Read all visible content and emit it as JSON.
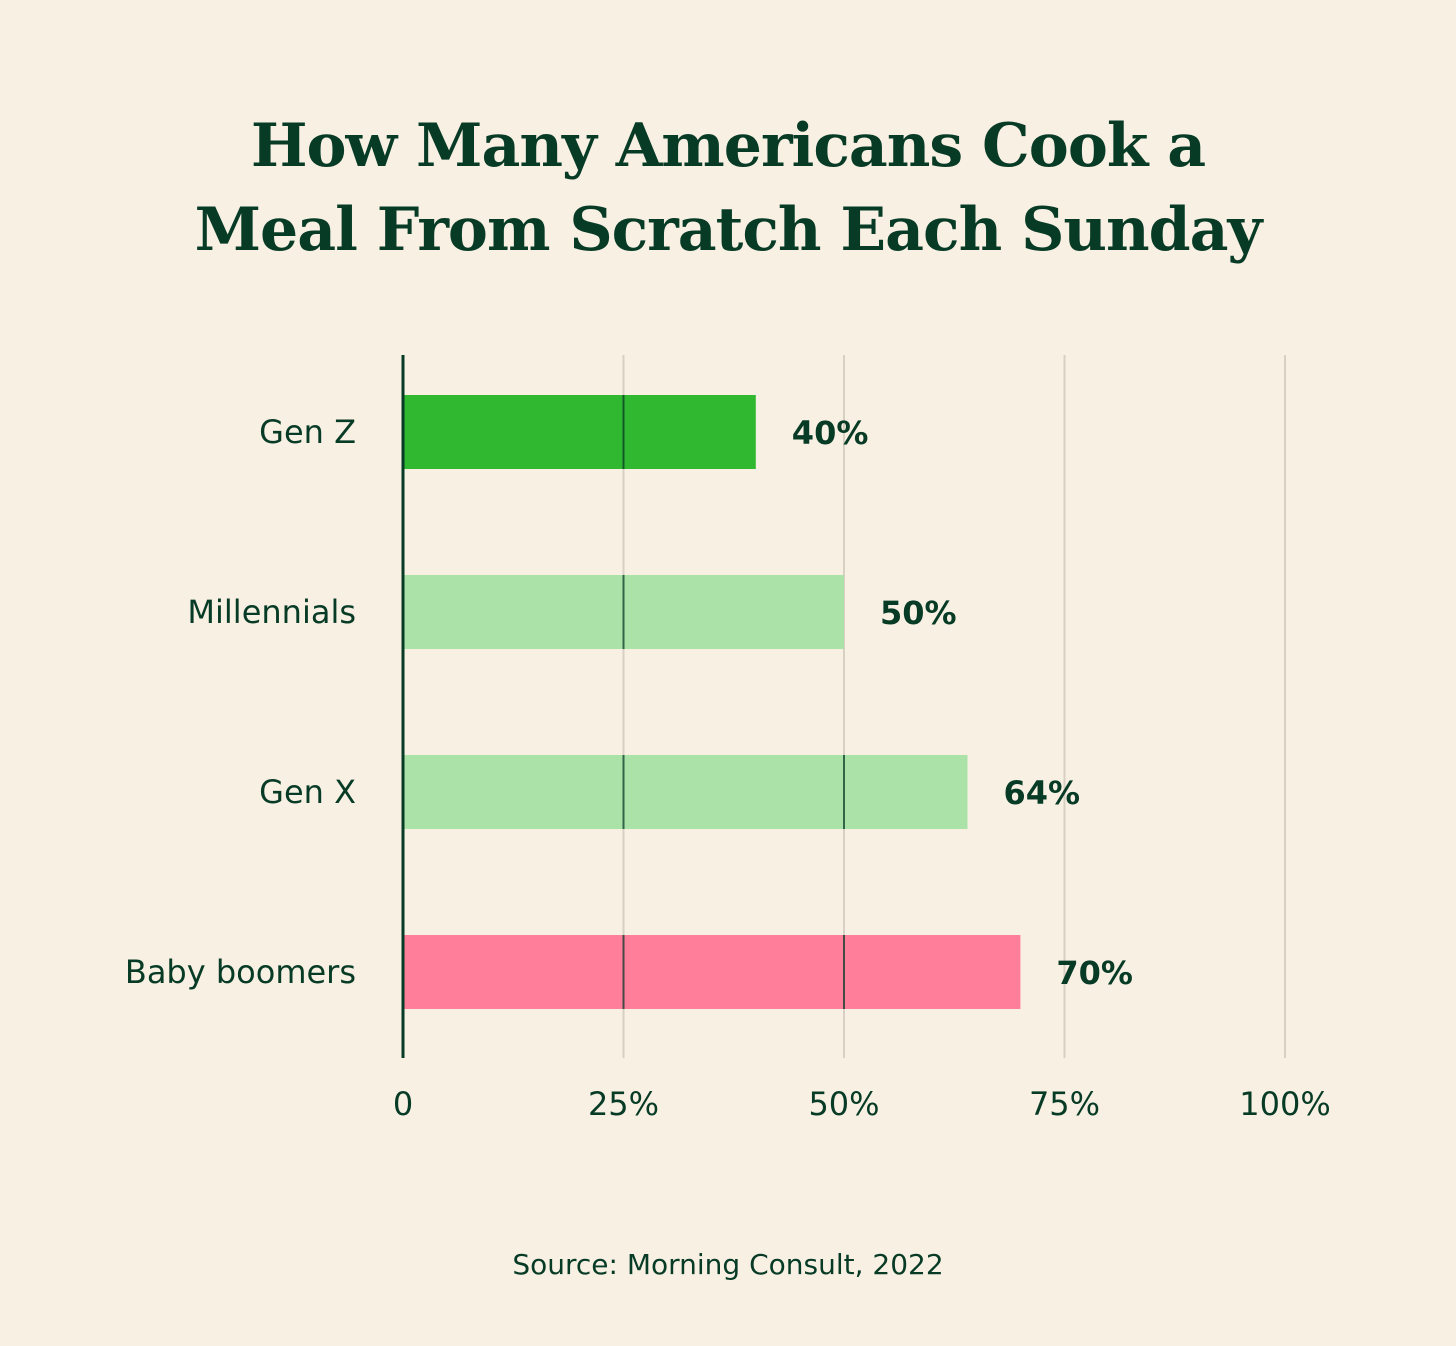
{
  "title_line1": "How Many Americans Cook a",
  "title_line2": "Meal From Scratch Each Sunday",
  "source": "Source: Morning Consult, 2022",
  "chart_data": {
    "type": "bar",
    "orientation": "horizontal",
    "categories": [
      "Gen Z",
      "Millennials",
      "Gen X",
      "Baby boomers"
    ],
    "values": [
      40,
      50,
      64,
      70
    ],
    "value_labels": [
      "40%",
      "50%",
      "64%",
      "70%"
    ],
    "bar_colors": [
      "#30b930",
      "#aae2a8",
      "#aae2a8",
      "#ff7e9a"
    ],
    "xlim": [
      0,
      100
    ],
    "xticks": [
      0,
      25,
      50,
      75,
      100
    ],
    "xtick_labels": [
      "0",
      "25%",
      "50%",
      "75%",
      "100%"
    ],
    "grid": true,
    "legend": "none",
    "colors": {
      "text": "#073b26",
      "gridline": "#d8d0c2",
      "background": "#f8f0e3"
    }
  }
}
